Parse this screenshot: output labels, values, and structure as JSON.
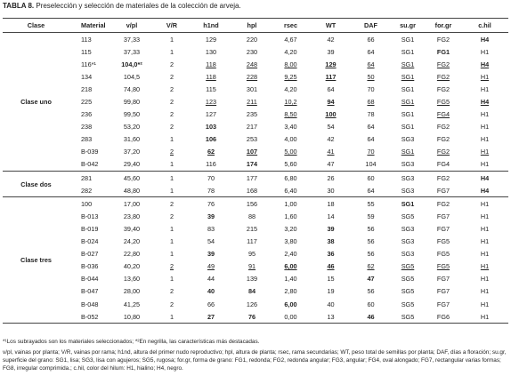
{
  "title": {
    "label": "TABLA 8.",
    "text": "Preselección y selección de materiales de la colección de arveja."
  },
  "table": {
    "columns": [
      "Clase",
      "Material",
      "v/pl",
      "V/R",
      "h1nd",
      "hpl",
      "rsec",
      "WT",
      "DAF",
      "su.gr",
      "for.gr",
      "c.hil"
    ],
    "groups": [
      {
        "clase": "Clase uno",
        "rows": [
          {
            "cells": [
              "113",
              "37,33",
              "1",
              "129",
              "220",
              "4,67",
              "42",
              "66",
              "SG1",
              "FG2",
              {
                "text": "H4",
                "bold": true
              }
            ]
          },
          {
            "cells": [
              "115",
              "37,33",
              "1",
              "130",
              "230",
              "4,20",
              "39",
              "64",
              "SG1",
              {
                "text": "FG1",
                "bold": true
              },
              "H1"
            ]
          },
          {
            "cells": [
              "116*¹",
              {
                "text": "104,0*²",
                "bold": true
              },
              "2",
              {
                "text": "118",
                "underline": true
              },
              {
                "text": "248",
                "underline": true
              },
              {
                "text": "8,00",
                "underline": true
              },
              {
                "text": "129",
                "bold": true,
                "underline": true
              },
              {
                "text": "64",
                "underline": true
              },
              {
                "text": "SG1",
                "underline": true
              },
              {
                "text": "FG2",
                "underline": true
              },
              {
                "text": "H4",
                "bold": true,
                "underline": true
              }
            ]
          },
          {
            "cells": [
              "134",
              "104,5",
              "2",
              {
                "text": "118",
                "underline": true
              },
              {
                "text": "228",
                "underline": true
              },
              {
                "text": "9,25",
                "underline": true
              },
              {
                "text": "117",
                "bold": true,
                "underline": true
              },
              {
                "text": "50",
                "underline": true
              },
              {
                "text": "SG1",
                "underline": true
              },
              {
                "text": "FG2",
                "underline": true
              },
              {
                "text": "H1",
                "underline": true
              }
            ]
          },
          {
            "cells": [
              "218",
              "74,80",
              "2",
              "115",
              "301",
              "4,20",
              "64",
              "70",
              "SG1",
              "FG2",
              "H1"
            ]
          },
          {
            "cells": [
              "225",
              "99,80",
              "2",
              {
                "text": "123",
                "underline": true
              },
              {
                "text": "211",
                "underline": true
              },
              {
                "text": "10,2",
                "underline": true
              },
              {
                "text": "94",
                "bold": true,
                "underline": true
              },
              {
                "text": "68",
                "underline": true
              },
              {
                "text": "SG1",
                "underline": true
              },
              {
                "text": "FG5",
                "underline": true
              },
              {
                "text": "H4",
                "bold": true,
                "underline": true
              }
            ]
          },
          {
            "cells": [
              "236",
              "99,50",
              "2",
              "127",
              "235",
              {
                "text": "8,50",
                "underline": true
              },
              {
                "text": "100",
                "bold": true,
                "underline": true
              },
              "78",
              "SG1",
              {
                "text": "FG4",
                "underline": true
              },
              "H1"
            ]
          },
          {
            "cells": [
              "238",
              "53,20",
              "2",
              {
                "text": "103",
                "bold": true
              },
              "217",
              "3,40",
              "54",
              "64",
              "SG1",
              "FG2",
              "H1"
            ]
          },
          {
            "cells": [
              "283",
              "31,60",
              "1",
              {
                "text": "106",
                "bold": true
              },
              "253",
              "4,00",
              "42",
              "64",
              "SG3",
              "FG2",
              "H1"
            ]
          },
          {
            "cells": [
              "B-039",
              "37,20",
              {
                "text": "2",
                "underline": true
              },
              {
                "text": "62",
                "bold": true,
                "underline": true
              },
              {
                "text": "107",
                "bold": true,
                "underline": true
              },
              {
                "text": "5,00",
                "underline": true
              },
              {
                "text": "41",
                "underline": true
              },
              {
                "text": "70",
                "underline": true
              },
              {
                "text": "SG1",
                "underline": true
              },
              {
                "text": "FG2",
                "underline": true
              },
              {
                "text": "H1",
                "underline": true
              }
            ]
          },
          {
            "cells": [
              "B-042",
              "29,40",
              "1",
              "116",
              {
                "text": "174",
                "bold": true
              },
              "5,60",
              "47",
              "104",
              "SG3",
              "FG4",
              "H1"
            ]
          }
        ]
      },
      {
        "clase": "Clase dos",
        "rows": [
          {
            "cells": [
              "281",
              "45,60",
              "1",
              "70",
              "177",
              "6,80",
              "26",
              "60",
              "SG3",
              "FG2",
              {
                "text": "H4",
                "bold": true
              }
            ]
          },
          {
            "cells": [
              "282",
              "48,80",
              "1",
              "78",
              "168",
              "6,40",
              "30",
              "64",
              "SG3",
              "FG7",
              {
                "text": "H4",
                "bold": true
              }
            ]
          }
        ]
      },
      {
        "clase": "Clase tres",
        "rows": [
          {
            "cells": [
              "100",
              "17,00",
              "2",
              "76",
              "156",
              "1,00",
              "18",
              "55",
              {
                "text": "SG1",
                "bold": true
              },
              "FG2",
              "H1"
            ]
          },
          {
            "cells": [
              "B-013",
              "23,80",
              "2",
              {
                "text": "39",
                "bold": true
              },
              "88",
              "1,60",
              "14",
              "59",
              "SG5",
              "FG7",
              "H1"
            ]
          },
          {
            "cells": [
              "B-019",
              "39,40",
              "1",
              "83",
              "215",
              "3,20",
              {
                "text": "39",
                "bold": true
              },
              "56",
              "SG3",
              "FG7",
              "H1"
            ]
          },
          {
            "cells": [
              "B-024",
              "24,20",
              "1",
              "54",
              "117",
              "3,80",
              {
                "text": "38",
                "bold": true
              },
              "56",
              "SG3",
              "FG5",
              "H1"
            ]
          },
          {
            "cells": [
              "B-027",
              "22,80",
              "1",
              {
                "text": "39",
                "bold": true
              },
              "95",
              "2,40",
              {
                "text": "36",
                "bold": true
              },
              "56",
              "SG3",
              "FG5",
              "H1"
            ]
          },
          {
            "cells": [
              "B-036",
              "40,20",
              {
                "text": "2",
                "underline": true
              },
              {
                "text": "49",
                "underline": true
              },
              {
                "text": "91",
                "underline": true
              },
              {
                "text": "6,00",
                "bold": true,
                "underline": true
              },
              {
                "text": "46",
                "bold": true,
                "underline": true
              },
              {
                "text": "62",
                "underline": true
              },
              {
                "text": "SG5",
                "underline": true
              },
              {
                "text": "FG5",
                "underline": true
              },
              {
                "text": "H1",
                "underline": true
              }
            ]
          },
          {
            "cells": [
              "B-044",
              "13,60",
              "1",
              "44",
              "139",
              "1,40",
              "15",
              {
                "text": "47",
                "bold": true
              },
              "SG5",
              "FG7",
              "H1"
            ]
          },
          {
            "cells": [
              "B-047",
              "28,00",
              "2",
              {
                "text": "40",
                "bold": true
              },
              {
                "text": "84",
                "bold": true
              },
              "2,80",
              "19",
              "56",
              "SG5",
              "FG7",
              "H1"
            ]
          },
          {
            "cells": [
              "B-048",
              "41,25",
              "2",
              "66",
              "126",
              {
                "text": "6,00",
                "bold": true
              },
              "40",
              "60",
              "SG5",
              "FG7",
              "H1"
            ]
          },
          {
            "cells": [
              "B-052",
              "10,80",
              "1",
              {
                "text": "27",
                "bold": true
              },
              {
                "text": "76",
                "bold": true
              },
              "0,00",
              "13",
              {
                "text": "46",
                "bold": true
              },
              "SG5",
              "FG6",
              "H1"
            ]
          }
        ]
      }
    ]
  },
  "notes": [
    "*¹Los subrayados son los materiales seleccionados; *²En negrilla, las características más destacadas.",
    "v/pl, vainas por planta; V/R, vainas por rama; h1nd, altura del primer nudo reproductivo; hpl, altura de planta; rsec, rama secundarias; WT, peso total de semillas por planta; DAF, días a floración; su.gr, superficie del grano: SG1, lisa; SG3, lisa con agujeros; SG5, rugosa; for.gr, forma de grano: FG1, redonda; FG2, redonda angular; FG3, angular; FG4, oval alongado; FG7, rectangular varias formas; FG8, irregular comprimida.; c.hil, color del hilum: H1, hialino; H4, negro."
  ]
}
